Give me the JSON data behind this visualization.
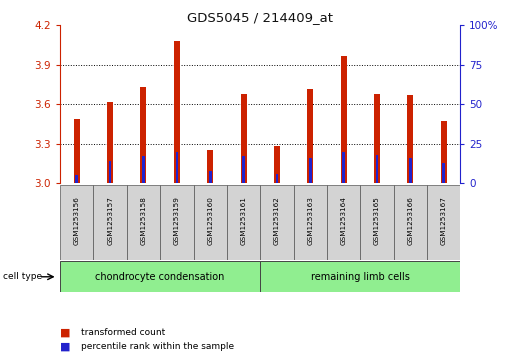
{
  "title": "GDS5045 / 214409_at",
  "samples": [
    "GSM1253156",
    "GSM1253157",
    "GSM1253158",
    "GSM1253159",
    "GSM1253160",
    "GSM1253161",
    "GSM1253162",
    "GSM1253163",
    "GSM1253164",
    "GSM1253165",
    "GSM1253166",
    "GSM1253167"
  ],
  "transformed_count": [
    3.49,
    3.62,
    3.73,
    4.08,
    3.25,
    3.68,
    3.28,
    3.72,
    3.97,
    3.68,
    3.67,
    3.47
  ],
  "percentile_rank": [
    5,
    14,
    17,
    20,
    8,
    17,
    6,
    16,
    20,
    18,
    16,
    13
  ],
  "y_min": 3.0,
  "y_max": 4.2,
  "y_ticks": [
    3.0,
    3.3,
    3.6,
    3.9,
    4.2
  ],
  "y2_ticks": [
    0,
    25,
    50,
    75,
    100
  ],
  "y2_tick_labels": [
    "0",
    "25",
    "50",
    "75",
    "100%"
  ],
  "cell_type_groups": [
    {
      "label": "chondrocyte condensation",
      "start": 0,
      "end": 5,
      "color": "#90EE90"
    },
    {
      "label": "remaining limb cells",
      "start": 6,
      "end": 11,
      "color": "#90EE90"
    }
  ],
  "bar_color": "#CC2200",
  "percentile_color": "#2222CC",
  "bg_color": "#D3D3D3",
  "plot_bg": "#FFFFFF",
  "left_axis_color": "#CC2200",
  "right_axis_color": "#2222CC",
  "grid_color": "#000000",
  "bar_width": 0.18,
  "blue_bar_width": 0.08
}
